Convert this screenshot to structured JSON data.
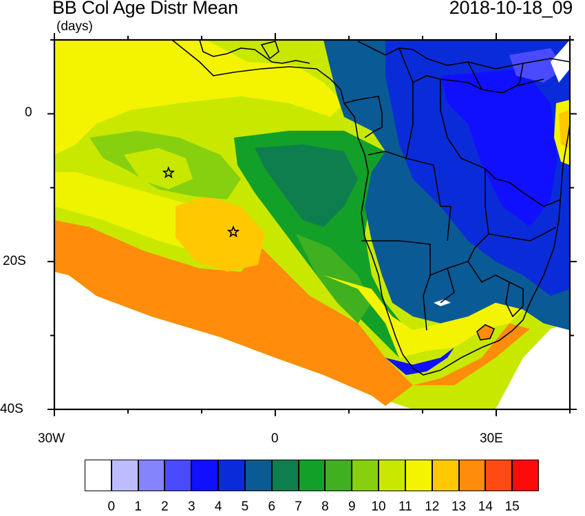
{
  "title": "BB Col Age Distr Mean",
  "units": "(days)",
  "timestamp": "2018-10-18_09",
  "axes": {
    "y_ticks": [
      {
        "label": "0",
        "lat": 0
      },
      {
        "label": "20S",
        "lat": -20
      },
      {
        "label": "40S",
        "lat": -40
      }
    ],
    "x_ticks": [
      {
        "label": "30W",
        "lon": -30
      },
      {
        "label": "0",
        "lon": 0
      },
      {
        "label": "30E",
        "lon": 30
      }
    ],
    "lon_range": [
      -30,
      40
    ],
    "lat_range": [
      -40,
      10
    ]
  },
  "markers": [
    {
      "name": "star-marker-1",
      "lon": -14.5,
      "lat": -8
    },
    {
      "name": "star-marker-2",
      "lon": -5.7,
      "lat": -16
    }
  ],
  "colorbar": {
    "labels": [
      "0",
      "1",
      "2",
      "3",
      "4",
      "5",
      "6",
      "7",
      "8",
      "9",
      "10",
      "11",
      "12",
      "13",
      "14",
      "15"
    ],
    "colors": [
      "#ffffff",
      "#bcbcff",
      "#8484ff",
      "#4a4aff",
      "#1010ff",
      "#0a2cd8",
      "#0a5a96",
      "#0e7e4e",
      "#12a028",
      "#40b020",
      "#86d010",
      "#c8e800",
      "#f4f400",
      "#ffc800",
      "#ff8c0a",
      "#ff4a14",
      "#ff0a0a"
    ]
  }
}
